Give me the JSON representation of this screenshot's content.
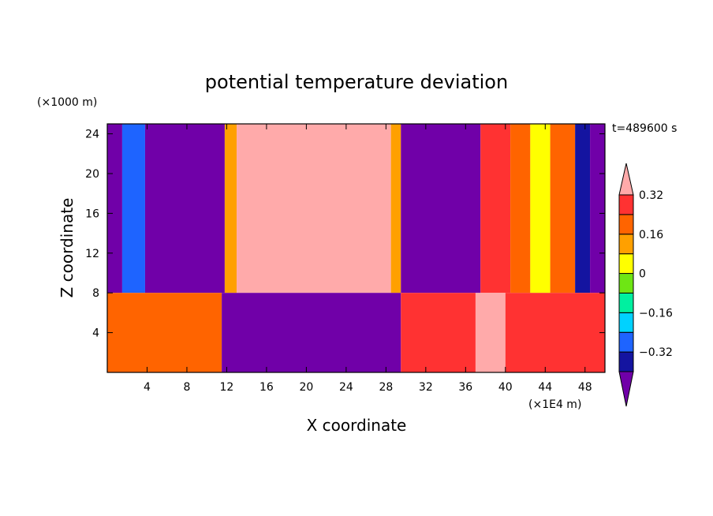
{
  "chart_data": {
    "type": "heatmap",
    "title": "potential temperature deviation",
    "xlabel": "X coordinate",
    "ylabel": "Z coordinate",
    "x_units": "(×1E4 m)",
    "y_units": "(×1000 m)",
    "time_label": "t=489600 s",
    "xlim": [
      0,
      50
    ],
    "ylim": [
      0,
      25
    ],
    "x_ticks": [
      4,
      8,
      12,
      16,
      20,
      24,
      28,
      32,
      36,
      40,
      44,
      48
    ],
    "x_tick_labels": [
      "4",
      "8",
      "12",
      "16",
      "20",
      "24",
      "28",
      "32",
      "36",
      "40",
      "44",
      "48"
    ],
    "y_ticks": [
      4,
      8,
      12,
      16,
      20,
      24
    ],
    "y_tick_labels": [
      "4",
      "8",
      "12",
      "16",
      "20",
      "24"
    ],
    "levels": [
      -0.4,
      -0.32,
      -0.24,
      -0.16,
      -0.08,
      0,
      0.08,
      0.16,
      0.24,
      0.32,
      0.4
    ],
    "colorbar_tick_values": [
      0.32,
      0.16,
      0,
      -0.16,
      -0.32
    ],
    "colorbar_tick_labels": [
      "0.32",
      "0.16",
      "0",
      "−0.16",
      "−0.32"
    ],
    "colors": [
      "#7000a8",
      "#1414a0",
      "#1e64ff",
      "#00d2ff",
      "#00f0a0",
      "#6ee614",
      "#ffff00",
      "#ffa000",
      "#ff6400",
      "#ff3232",
      "#ffaaaa"
    ],
    "upper_layer_columns": [
      {
        "x": [
          0,
          1.5
        ],
        "value": -0.45
      },
      {
        "x": [
          1.5,
          3.8
        ],
        "value": -0.25
      },
      {
        "x": [
          3.8,
          11.8
        ],
        "value": -0.45
      },
      {
        "x": [
          11.8,
          13.0
        ],
        "value": 0.1
      },
      {
        "x": [
          13.0,
          28.5
        ],
        "value": 0.45
      },
      {
        "x": [
          28.5,
          29.5
        ],
        "value": 0.1
      },
      {
        "x": [
          29.5,
          37.5
        ],
        "value": -0.45
      },
      {
        "x": [
          37.5,
          40.5
        ],
        "value": 0.3
      },
      {
        "x": [
          40.5,
          42.5
        ],
        "value": 0.2
      },
      {
        "x": [
          42.5,
          44.5
        ],
        "value": 0.05
      },
      {
        "x": [
          44.5,
          47.0
        ],
        "value": 0.2
      },
      {
        "x": [
          47.0,
          48.5
        ],
        "value": -0.35
      },
      {
        "x": [
          48.5,
          50
        ],
        "value": -0.45
      }
    ],
    "lower_layer_columns": [
      {
        "x": [
          0,
          11.5
        ],
        "value": 0.2
      },
      {
        "x": [
          11.5,
          29.5
        ],
        "value": -0.45
      },
      {
        "x": [
          29.5,
          37.0
        ],
        "value": 0.3
      },
      {
        "x": [
          37.0,
          40.0
        ],
        "value": 0.45
      },
      {
        "x": [
          40.0,
          50
        ],
        "value": 0.3
      }
    ],
    "layer_interface_z": 8
  }
}
